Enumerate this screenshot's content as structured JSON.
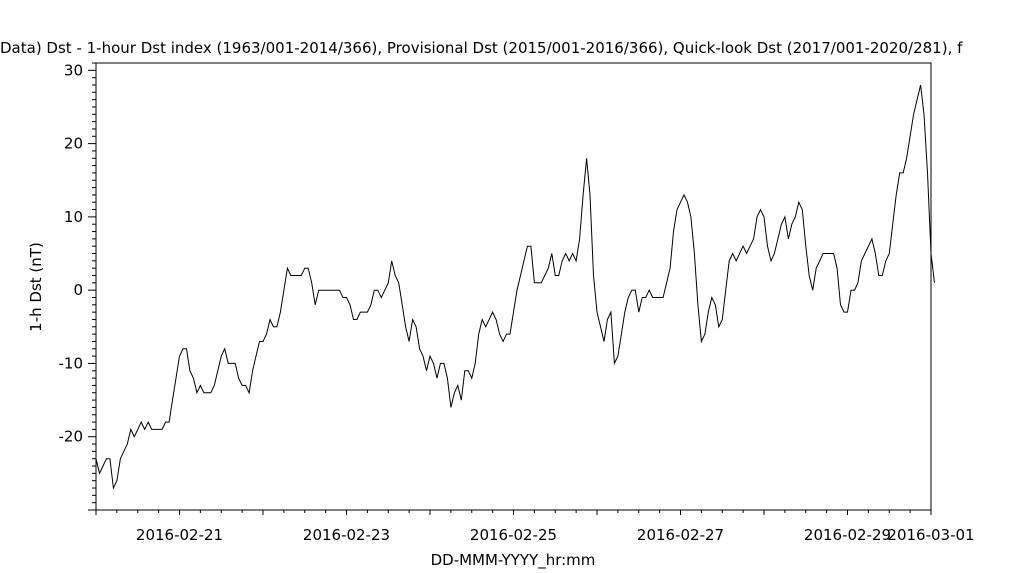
{
  "chart_data": {
    "type": "line",
    "title": "Data)  Dst - 1-hour Dst index (1963/001-2014/366), Provisional Dst (2015/001-2016/366), Quick-look Dst (2017/001-2020/281), f",
    "xlabel": "DD-MMM-YYYY_hr:mm",
    "ylabel": "1-h Dst (nT)",
    "x_range": [
      "2016-02-20T00:00",
      "2016-03-01T00:00"
    ],
    "ylim": [
      -30,
      31
    ],
    "x_ticks": [
      "2016-02-21",
      "2016-02-23",
      "2016-02-25",
      "2016-02-27",
      "2016-02-29",
      "2016-03-01"
    ],
    "y_ticks": [
      30,
      20,
      10,
      0,
      -10,
      -20
    ],
    "grid": false,
    "series": [
      {
        "color": "#000000",
        "start": "2016-02-20T00:00",
        "step_hours": 1,
        "values": [
          -23,
          -25,
          -24,
          -23,
          -23,
          -27,
          -26,
          -23,
          -22,
          -21,
          -19,
          -20,
          -19,
          -18,
          -19,
          -18,
          -19,
          -19,
          -19,
          -19,
          -18,
          -18,
          -15,
          -12,
          -9,
          -8,
          -8,
          -11,
          -12,
          -14,
          -13,
          -14,
          -14,
          -14,
          -13,
          -11,
          -9,
          -8,
          -10,
          -10,
          -10,
          -12,
          -13,
          -13,
          -14,
          -11,
          -9,
          -7,
          -7,
          -6,
          -4,
          -5,
          -5,
          -3,
          0,
          3,
          2,
          2,
          2,
          2,
          3,
          3,
          1,
          -2,
          0,
          0,
          0,
          0,
          0,
          0,
          0,
          -1,
          -1,
          -2,
          -4,
          -4,
          -3,
          -3,
          -3,
          -2,
          0,
          0,
          -1,
          0,
          1,
          4,
          2,
          1,
          -2,
          -5,
          -7,
          -4,
          -5,
          -8,
          -9,
          -11,
          -9,
          -10,
          -12,
          -10,
          -10,
          -12,
          -16,
          -14,
          -13,
          -15,
          -11,
          -11,
          -12,
          -10,
          -6,
          -4,
          -5,
          -4,
          -3,
          -4,
          -6,
          -7,
          -6,
          -6,
          -3,
          0,
          2,
          4,
          6,
          6,
          1,
          1,
          1,
          2,
          3,
          5,
          2,
          2,
          4,
          5,
          4,
          5,
          4,
          7,
          13,
          18,
          13,
          2,
          -3,
          -5,
          -7,
          -4,
          -3,
          -10,
          -9,
          -6,
          -3,
          -1,
          0,
          0,
          -3,
          -1,
          -1,
          0,
          -1,
          -1,
          -1,
          -1,
          1,
          3,
          8,
          11,
          12,
          13,
          12,
          10,
          5,
          -2,
          -7,
          -6,
          -3,
          -1,
          -2,
          -5,
          -4,
          0,
          4,
          5,
          4,
          5,
          6,
          5,
          6,
          7,
          10,
          11,
          10,
          6,
          4,
          5,
          7,
          9,
          10,
          7,
          9,
          10,
          12,
          11,
          6,
          2,
          0,
          3,
          4,
          5,
          5,
          5,
          5,
          3,
          -2,
          -3,
          -3,
          0,
          0,
          1,
          4,
          5,
          6,
          7,
          5,
          2,
          2,
          4,
          5,
          9,
          13,
          16,
          16,
          18,
          21,
          24,
          26,
          28,
          24,
          16,
          5,
          1
        ]
      }
    ]
  }
}
